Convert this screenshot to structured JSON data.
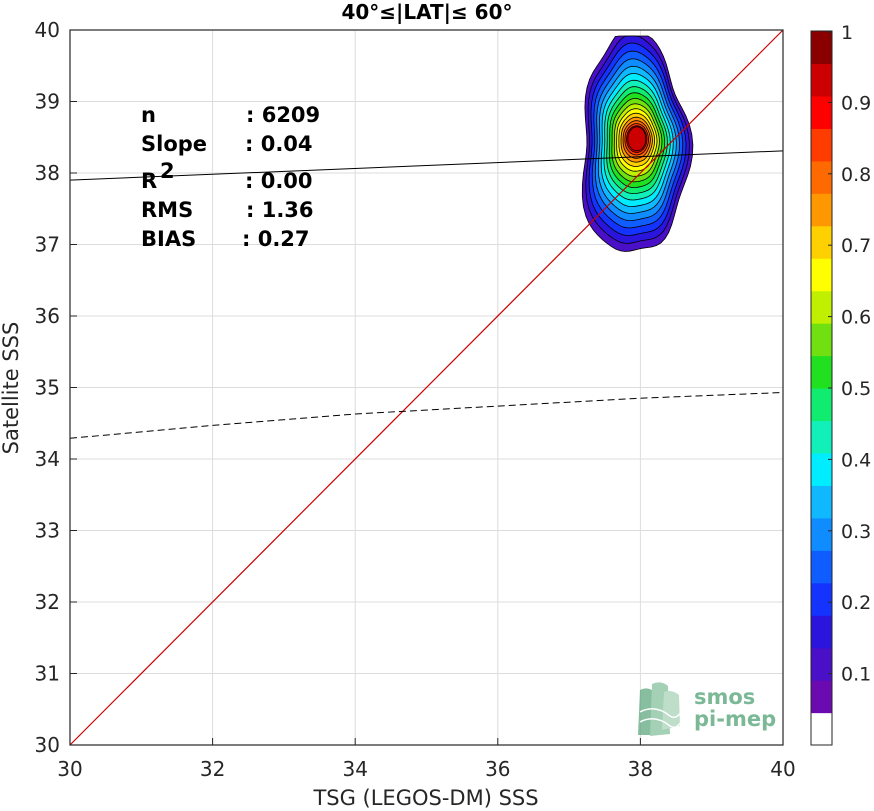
{
  "chart_data": {
    "type": "scatter",
    "subtype": "density-contour",
    "title": "40°≤|LAT|≤ 60°",
    "xlabel": "TSG (LEGOS-DM) SSS",
    "ylabel": "Satellite SSS",
    "xlim": [
      30,
      40
    ],
    "ylim": [
      30,
      40
    ],
    "xticks": [
      "30",
      "32",
      "34",
      "36",
      "38",
      "40"
    ],
    "yticks": [
      "30",
      "31",
      "32",
      "33",
      "34",
      "35",
      "36",
      "37",
      "38",
      "39",
      "40"
    ],
    "grid": true,
    "stats": [
      {
        "label": "n",
        "value": ": 6209"
      },
      {
        "label": "Slope",
        "value": ": 0.04"
      },
      {
        "label": "R",
        "sup": "2",
        "value": ": 0.00"
      },
      {
        "label": "RMS",
        "value": ": 1.36"
      },
      {
        "label": "BIAS",
        "value": ": 0.27"
      }
    ],
    "lines": {
      "identity": {
        "x": [
          30,
          40
        ],
        "y": [
          30,
          40
        ],
        "color": "#cc0000"
      },
      "regression": {
        "x": [
          30,
          40
        ],
        "y": [
          37.9,
          38.31
        ],
        "color": "#000000"
      },
      "dashed": {
        "x": [
          30,
          32,
          34,
          36,
          38,
          40
        ],
        "y": [
          34.29,
          34.47,
          34.63,
          34.74,
          34.85,
          34.93
        ],
        "color": "#000000"
      }
    },
    "density_peak": {
      "x": 37.95,
      "y": 38.45
    },
    "contour_levels": [
      0.05,
      0.1,
      0.15,
      0.2,
      0.25,
      0.3,
      0.35,
      0.4,
      0.45,
      0.5,
      0.55,
      0.6,
      0.65,
      0.7,
      0.75,
      0.8,
      0.85,
      0.9,
      0.95
    ],
    "colorbar": {
      "ticks": [
        "0.1",
        "0.2",
        "0.3",
        "0.4",
        "0.5",
        "0.6",
        "0.7",
        "0.8",
        "0.9",
        "1"
      ],
      "colors": [
        "#ffffff",
        "#6a0ab0",
        "#4a10c8",
        "#2b14dc",
        "#1433ff",
        "#0f5cff",
        "#0f8cff",
        "#0fb8ff",
        "#00ecff",
        "#10f0b8",
        "#10ec70",
        "#20e020",
        "#70e010",
        "#c0f000",
        "#ffff00",
        "#ffd000",
        "#ff9800",
        "#ff6a00",
        "#ff3c00",
        "#ff0000",
        "#cc0000",
        "#8a0000"
      ]
    }
  },
  "logo": {
    "line1": "smos",
    "line2": "pi-mep",
    "color": "#7ab896"
  }
}
